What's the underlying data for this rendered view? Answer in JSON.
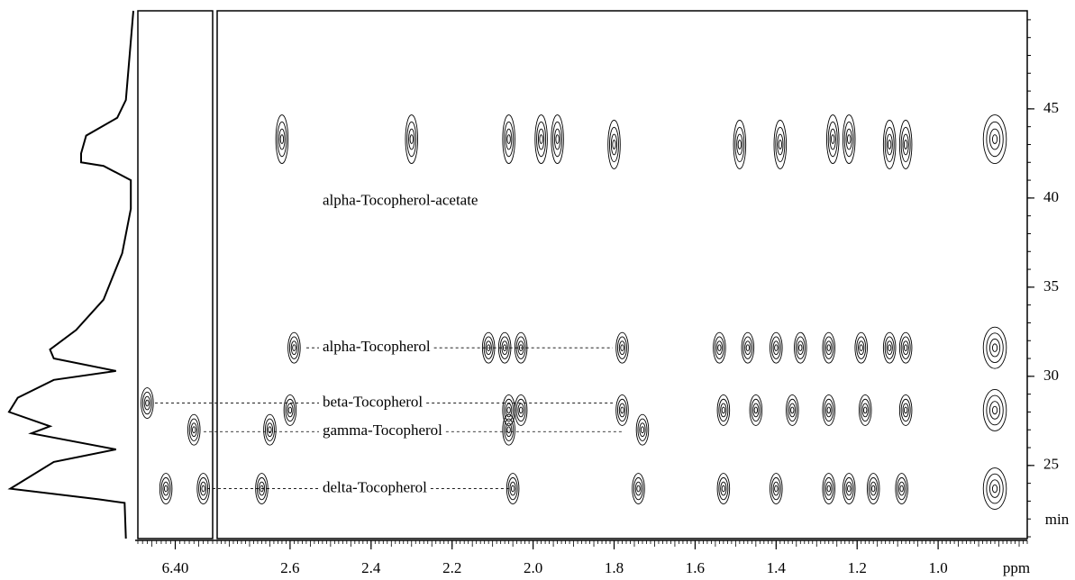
{
  "chart_data": {
    "type": "contour",
    "x_label": "ppm",
    "y_label": "min",
    "xlim": [
      2.78,
      0.78
    ],
    "xticks": [
      2.6,
      2.4,
      2.2,
      {
        "value": 2,
        "label": "2.0"
      },
      1.8,
      1.6,
      1.4,
      1.2,
      {
        "value": 1,
        "label": "1.0"
      }
    ],
    "inset_xlim": [
      6.48,
      6.32
    ],
    "inset_xticks": [
      {
        "value": 6.4,
        "label": "6.40"
      }
    ],
    "ylim": [
      20.9,
      50.5
    ],
    "yticks": [
      25,
      30,
      35,
      40,
      45
    ],
    "intensity_lim": [
      0,
      100
    ],
    "peaks": {
      "x": [
        2.62,
        2.3,
        2.06,
        1.98,
        1.94,
        1.8,
        1.49,
        1.39,
        1.26,
        1.22,
        1.12,
        1.08,
        0.86,
        2.59,
        2.11,
        2.07,
        2.03,
        1.78,
        1.54,
        1.47,
        1.4,
        1.34,
        1.27,
        1.19,
        1.12,
        1.08,
        0.86,
        2.6,
        2.06,
        2.03,
        1.78,
        1.53,
        1.45,
        1.36,
        1.27,
        1.18,
        1.08,
        0.86,
        2.65,
        2.06,
        1.73,
        2.67,
        2.05,
        1.74,
        1.53,
        1.4,
        1.27,
        1.22,
        1.16,
        1.09,
        0.86
      ],
      "y": [
        43.3,
        43.3,
        43.3,
        43.3,
        43.3,
        43.0,
        43.0,
        43.0,
        43.3,
        43.3,
        43.0,
        43.0,
        43.3,
        31.6,
        31.6,
        31.6,
        31.6,
        31.6,
        31.6,
        31.6,
        31.6,
        31.6,
        31.6,
        31.6,
        31.6,
        31.6,
        31.6,
        28.1,
        28.1,
        28.1,
        28.1,
        28.1,
        28.1,
        28.1,
        28.1,
        28.1,
        28.1,
        28.1,
        27.0,
        27.0,
        27.0,
        23.7,
        23.7,
        23.7,
        23.7,
        23.7,
        23.7,
        23.7,
        23.7,
        23.7,
        23.7
      ]
    },
    "inset_peaks": {
      "x": [
        6.46,
        6.36,
        6.42,
        6.34
      ],
      "y": [
        28.5,
        27.0,
        23.7,
        23.7
      ]
    },
    "projection": {
      "y": [
        50.5,
        45.5,
        44.5,
        43.5,
        42.5,
        42.0,
        41.8,
        41.0,
        39.4,
        36.9,
        34.3,
        32.6,
        31.5,
        31.0,
        30.3,
        29.8,
        28.8,
        28.0,
        27.2,
        26.8,
        25.9,
        25.2,
        23.7,
        23.1,
        22.9,
        20.9
      ],
      "intensity": [
        0,
        6,
        13,
        38,
        42,
        42,
        24,
        2,
        2,
        9,
        24,
        46,
        67,
        64,
        14,
        64,
        93,
        100,
        67,
        82,
        14,
        64,
        99,
        28,
        7,
        6
      ]
    },
    "annotations": [
      {
        "text": "alpha-Tocopherol-acetate",
        "y": 39.8
      },
      {
        "text": "alpha-Tocopherol",
        "y": 31.6
      },
      {
        "text": "beta-Tocopherol",
        "y": 28.5
      },
      {
        "text": "gamma-Tocopherol",
        "y": 26.9
      },
      {
        "text": "delta-Tocopherol",
        "y": 23.7
      }
    ]
  }
}
